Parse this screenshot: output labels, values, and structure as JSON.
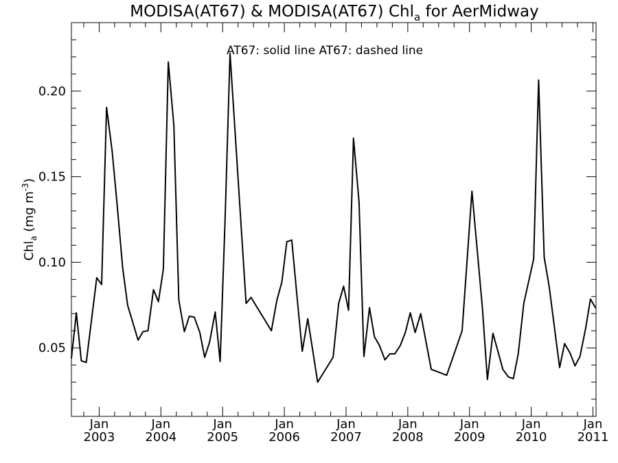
{
  "chart_data": {
    "type": "line",
    "title": "MODISA(AT67) & MODISA(AT67)  Chl",
    "title_sub": "a",
    "title_tail": " for AerMidway",
    "ylabel": "Chl",
    "ylabel_sub": "a",
    "ylabel_unit": " (mg m",
    "ylabel_sup": "-3",
    "ylabel_close": ")",
    "annotation": "AT67: solid line   AT67: dashed line",
    "xlim": [
      2002.55,
      2011.05
    ],
    "ylim": [
      0.01,
      0.24
    ],
    "y_ticks": [
      0.05,
      0.1,
      0.15,
      0.2
    ],
    "y_tick_labels": [
      "0.05",
      "0.10",
      "0.15",
      "0.20"
    ],
    "x_ticks": [
      2003,
      2004,
      2005,
      2006,
      2007,
      2008,
      2009,
      2010,
      2011
    ],
    "x_tick_month_label": "Jan",
    "x_tick_year_labels": [
      "2003",
      "2004",
      "2005",
      "2006",
      "2007",
      "2008",
      "2009",
      "2010",
      "2011"
    ],
    "grid": false,
    "series": [
      {
        "style": "solid",
        "x": [
          2002.55,
          2002.63,
          2002.71,
          2002.79,
          2002.96,
          2003.04,
          2003.12,
          2003.21,
          2003.29,
          2003.38,
          2003.46,
          2003.63,
          2003.71,
          2003.79,
          2003.88,
          2003.96,
          2004.04,
          2004.12,
          2004.21,
          2004.29,
          2004.38,
          2004.46,
          2004.54,
          2004.63,
          2004.71,
          2004.79,
          2004.88,
          2004.96,
          2005.04,
          2005.12,
          2005.38,
          2005.46,
          2005.79,
          2005.88,
          2005.96,
          2006.04,
          2006.12,
          2006.21,
          2006.29,
          2006.38,
          2006.54,
          2006.79,
          2006.88,
          2006.96,
          2007.04,
          2007.12,
          2007.21,
          2007.29,
          2007.38,
          2007.46,
          2007.54,
          2007.63,
          2007.71,
          2007.79,
          2007.88,
          2007.96,
          2008.04,
          2008.12,
          2008.21,
          2008.38,
          2008.63,
          2008.88,
          2009.04,
          2009.21,
          2009.29,
          2009.38,
          2009.54,
          2009.63,
          2009.71,
          2009.79,
          2009.88,
          2009.96,
          2010.04,
          2010.12,
          2010.21,
          2010.29,
          2010.46,
          2010.54,
          2010.63,
          2010.71,
          2010.79,
          2010.88,
          2010.96,
          2011.04
        ],
        "y": [
          0.044,
          0.0705,
          0.0425,
          0.0415,
          0.091,
          0.087,
          0.1905,
          0.165,
          0.134,
          0.097,
          0.075,
          0.0545,
          0.0595,
          0.06,
          0.084,
          0.077,
          0.096,
          0.217,
          0.18,
          0.078,
          0.0595,
          0.0685,
          0.068,
          0.059,
          0.0445,
          0.0535,
          0.071,
          0.042,
          0.125,
          0.222,
          0.076,
          0.0795,
          0.06,
          0.078,
          0.0885,
          0.112,
          0.113,
          0.078,
          0.048,
          0.067,
          0.03,
          0.0445,
          0.076,
          0.086,
          0.072,
          0.1725,
          0.135,
          0.045,
          0.0735,
          0.0565,
          0.0515,
          0.043,
          0.0465,
          0.0465,
          0.0515,
          0.059,
          0.0705,
          0.059,
          0.07,
          0.0375,
          0.034,
          0.06,
          0.1415,
          0.073,
          0.0315,
          0.0585,
          0.0375,
          0.033,
          0.032,
          0.0465,
          0.076,
          0.089,
          0.102,
          0.2065,
          0.103,
          0.086,
          0.0385,
          0.0525,
          0.047,
          0.0395,
          0.045,
          0.061,
          0.0785,
          0.0735
        ]
      }
    ]
  }
}
